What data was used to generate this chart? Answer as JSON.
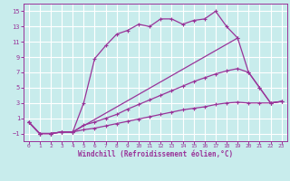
{
  "xlabel": "Windchill (Refroidissement éolien,°C)",
  "bg_color": "#c8ecec",
  "line_color": "#993399",
  "grid_color": "#ffffff",
  "xlim": [
    -0.5,
    23.5
  ],
  "ylim": [
    -2.0,
    16.0
  ],
  "xticks": [
    0,
    1,
    2,
    3,
    4,
    5,
    6,
    7,
    8,
    9,
    10,
    11,
    12,
    13,
    14,
    15,
    16,
    17,
    18,
    19,
    20,
    21,
    22,
    23
  ],
  "yticks": [
    -1,
    1,
    3,
    5,
    7,
    9,
    11,
    13,
    15
  ],
  "lines": [
    {
      "x": [
        0,
        1,
        2,
        3,
        4,
        5,
        6,
        7,
        8,
        9,
        10,
        11,
        12,
        13,
        14,
        15,
        16,
        17,
        18,
        19,
        20,
        21,
        22,
        23
      ],
      "y": [
        0.5,
        -1,
        -1,
        -0.8,
        -0.8,
        3.0,
        8.8,
        10.5,
        12.0,
        12.5,
        13.3,
        13.0,
        14.0,
        14.0,
        13.3,
        13.8,
        14.0,
        15.0,
        13.0,
        11.5,
        null,
        null,
        null,
        null
      ]
    },
    {
      "x": [
        0,
        1,
        2,
        3,
        4,
        5,
        6,
        7,
        8,
        9,
        10,
        11,
        12,
        13,
        14,
        15,
        16,
        17,
        18,
        19,
        20,
        21,
        22,
        23
      ],
      "y": [
        0.5,
        -1,
        -1,
        -0.8,
        -0.8,
        null,
        null,
        null,
        null,
        null,
        null,
        null,
        null,
        null,
        null,
        null,
        null,
        null,
        null,
        11.5,
        null,
        null,
        null,
        null
      ]
    },
    {
      "x": [
        0,
        1,
        2,
        3,
        4,
        19,
        20,
        21,
        22,
        23
      ],
      "y": [
        0.5,
        -1,
        -1,
        -0.8,
        -0.8,
        11.5,
        7.0,
        5.0,
        3.0,
        3.2
      ]
    },
    {
      "x": [
        0,
        1,
        2,
        3,
        4,
        5,
        6,
        7,
        8,
        9,
        10,
        11,
        12,
        13,
        14,
        15,
        16,
        17,
        18,
        19,
        20,
        21,
        22,
        23
      ],
      "y": [
        0.5,
        -1,
        -1,
        -0.8,
        -0.8,
        0.1,
        0.5,
        1.0,
        1.5,
        2.2,
        2.8,
        3.4,
        4.0,
        4.6,
        5.2,
        5.8,
        6.3,
        6.8,
        7.2,
        7.5,
        7.0,
        5.0,
        3.0,
        3.2
      ]
    },
    {
      "x": [
        0,
        1,
        2,
        3,
        4,
        5,
        6,
        7,
        8,
        9,
        10,
        11,
        12,
        13,
        14,
        15,
        16,
        17,
        18,
        19,
        20,
        21,
        22,
        23
      ],
      "y": [
        0.5,
        -1,
        -1,
        -0.8,
        -0.8,
        -0.5,
        -0.3,
        0.0,
        0.3,
        0.6,
        0.9,
        1.2,
        1.5,
        1.8,
        2.1,
        2.3,
        2.5,
        2.8,
        3.0,
        3.1,
        3.0,
        3.0,
        3.0,
        3.2
      ]
    }
  ]
}
